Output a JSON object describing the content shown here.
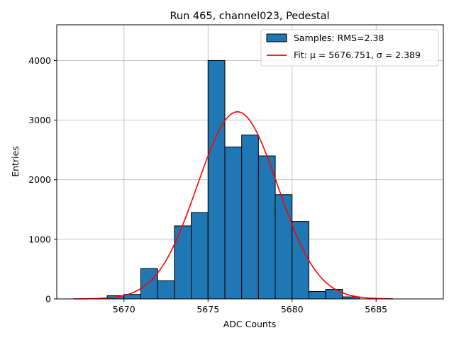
{
  "chart_data": {
    "type": "bar",
    "title": "Run 465, channel023, Pedestal",
    "xlabel": "ADC Counts",
    "ylabel": "Entries",
    "xlim": [
      5666.0,
      5689.0
    ],
    "ylim": [
      0,
      4600
    ],
    "xticks": [
      5670,
      5675,
      5680,
      5685
    ],
    "yticks": [
      0,
      1000,
      2000,
      3000,
      4000
    ],
    "grid": true,
    "legend_position": "top-right",
    "colors": {
      "bar_fill": "#1f77b4",
      "bar_edge": "#000000",
      "fit_line": "#ff0000",
      "grid": "#b0b0b0"
    },
    "histogram": {
      "name": "Samples: RMS=2.38",
      "bin_edges": [
        5669,
        5670,
        5671,
        5672,
        5673,
        5674,
        5675,
        5676,
        5677,
        5678,
        5679,
        5680,
        5681,
        5682,
        5683,
        5684
      ],
      "counts": [
        55,
        75,
        510,
        305,
        1225,
        1450,
        4000,
        2550,
        2750,
        2400,
        1750,
        1300,
        125,
        160,
        35
      ]
    },
    "fit": {
      "name": "Fit: μ = 5676.751, σ = 2.389",
      "mu": 5676.751,
      "sigma": 2.389,
      "amplitude": 3140,
      "x_range": [
        5667.0,
        5686.0
      ]
    }
  }
}
